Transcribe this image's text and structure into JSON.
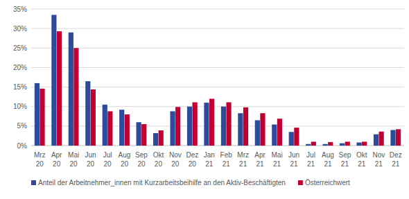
{
  "chart_data": {
    "type": "bar",
    "categories": [
      "Mrz 20",
      "Apr 20",
      "Mai 20",
      "Jun 20",
      "Jul 20",
      "Aug 20",
      "Sep 20",
      "Okt 20",
      "Nov 20",
      "Dez 20",
      "Jan 21",
      "Feb 21",
      "Mrz 21",
      "Apr 21",
      "Mai 21",
      "Jun 21",
      "Jul 21",
      "Aug 21",
      "Sep 21",
      "Okt 21",
      "Nov 21",
      "Dez 21"
    ],
    "series": [
      {
        "name": "Anteil der Arbeitnehmer_innen mit Kurzarbeitsbeihilfe an den Aktiv-Beschäftigten",
        "color": "#2E4B9B",
        "values": [
          16,
          33.5,
          29,
          16.5,
          10.5,
          9.2,
          6,
          3.2,
          8.8,
          10,
          11,
          10,
          8.3,
          6.5,
          5.4,
          3.5,
          0.4,
          0.4,
          0.6,
          0.8,
          2.9,
          4
        ]
      },
      {
        "name": "Österreichwert",
        "color": "#C00031",
        "values": [
          14.6,
          29.3,
          25,
          14.4,
          8.8,
          8,
          5.5,
          3.9,
          9.9,
          11.1,
          12,
          11.1,
          9.8,
          8.3,
          6.9,
          4.6,
          1,
          0.9,
          1,
          1,
          3.6,
          4.2
        ]
      }
    ],
    "ylim": [
      0,
      35
    ],
    "yticks": [
      {
        "value": 0,
        "label": "0%"
      },
      {
        "value": 5,
        "label": "5%"
      },
      {
        "value": 10,
        "label": "10%"
      },
      {
        "value": 15,
        "label": "15%"
      },
      {
        "value": 20,
        "label": "20%"
      },
      {
        "value": 25,
        "label": "25%"
      },
      {
        "value": 30,
        "label": "30%"
      },
      {
        "value": 35,
        "label": "35%"
      }
    ],
    "grid": true,
    "legend": "bottom"
  }
}
